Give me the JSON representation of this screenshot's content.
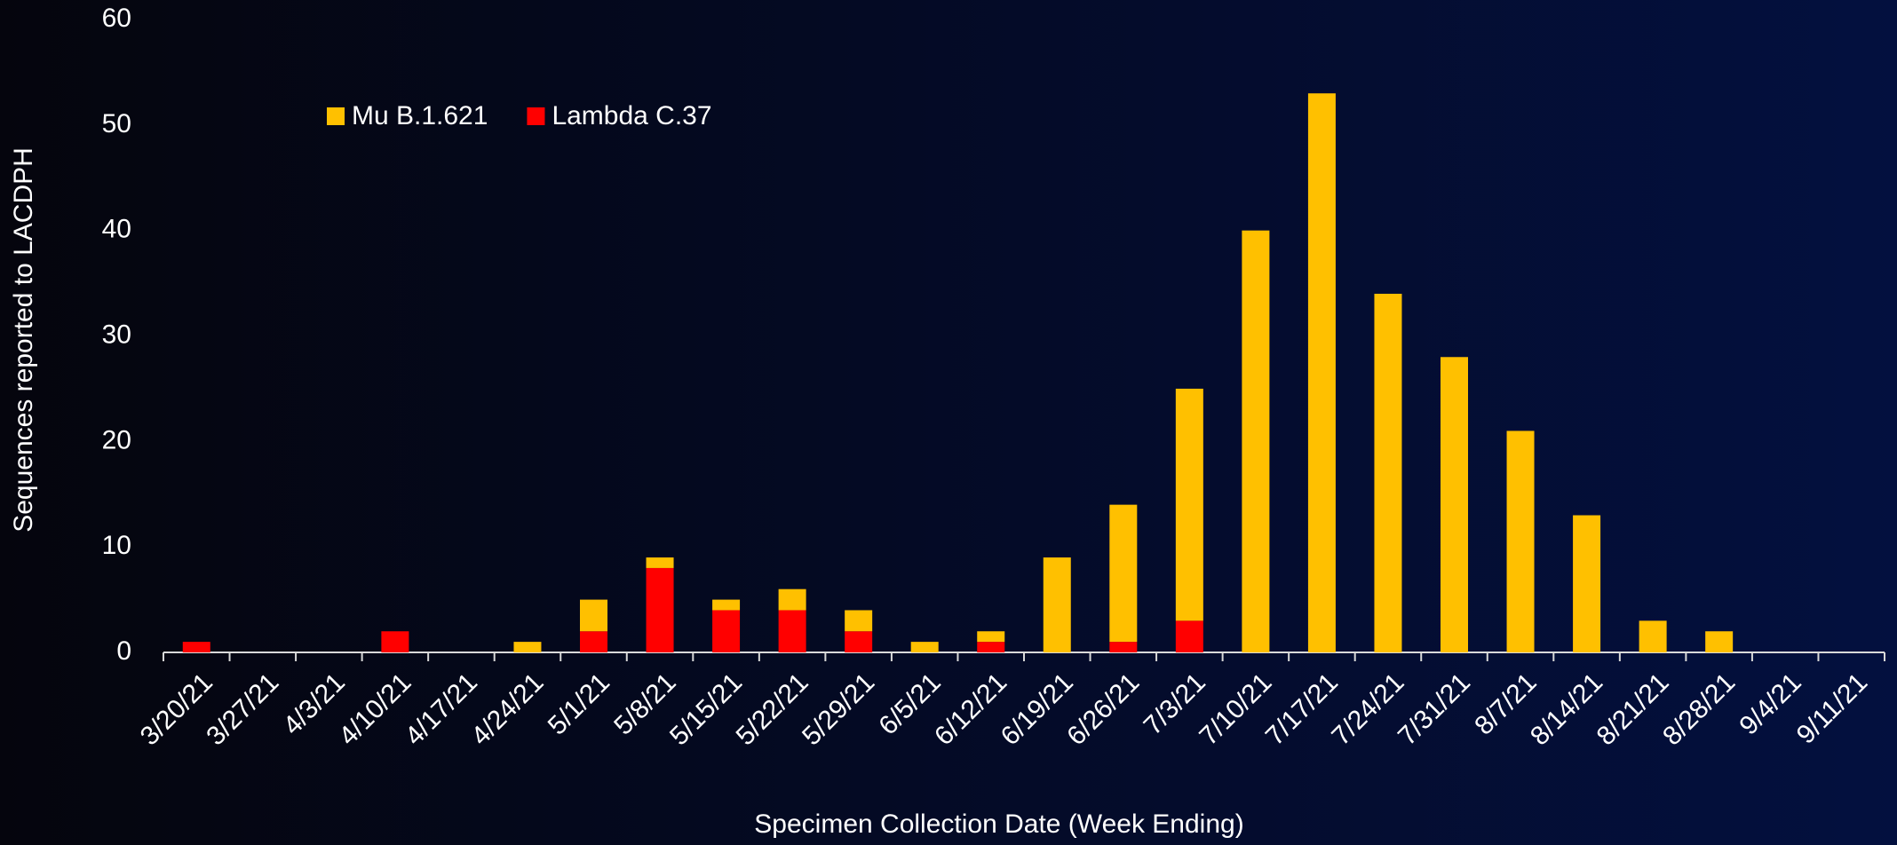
{
  "chart_data": {
    "type": "stacked_bar",
    "x_label": "Specimen Collection Date (Week Ending)",
    "y_label": "Sequences reported to LACDPH",
    "categories": [
      "3/20/21",
      "3/27/21",
      "4/3/21",
      "4/10/21",
      "4/17/21",
      "4/24/21",
      "5/1/21",
      "5/8/21",
      "5/15/21",
      "5/22/21",
      "5/29/21",
      "6/5/21",
      "6/12/21",
      "6/19/21",
      "6/26/21",
      "7/3/21",
      "7/10/21",
      "7/17/21",
      "7/24/21",
      "7/31/21",
      "8/7/21",
      "8/14/21",
      "8/21/21",
      "8/28/21",
      "9/4/21",
      "9/11/21"
    ],
    "series": [
      {
        "name": "Lambda C.37",
        "color": "#ff0000",
        "values": [
          1,
          0,
          0,
          2,
          0,
          0,
          2,
          8,
          4,
          4,
          2,
          0,
          1,
          0,
          1,
          3,
          0,
          0,
          0,
          0,
          0,
          0,
          0,
          0,
          0,
          0
        ]
      },
      {
        "name": "Mu B.1.621",
        "color": "#ffc000",
        "values": [
          0,
          0,
          0,
          0,
          0,
          1,
          3,
          1,
          1,
          2,
          2,
          1,
          1,
          9,
          13,
          22,
          40,
          53,
          34,
          28,
          21,
          13,
          3,
          2,
          0,
          0
        ]
      }
    ],
    "legend_order": [
      1,
      0
    ],
    "ylim": [
      0,
      60
    ],
    "yticks": [
      0,
      10,
      20,
      30,
      40,
      50,
      60
    ]
  }
}
